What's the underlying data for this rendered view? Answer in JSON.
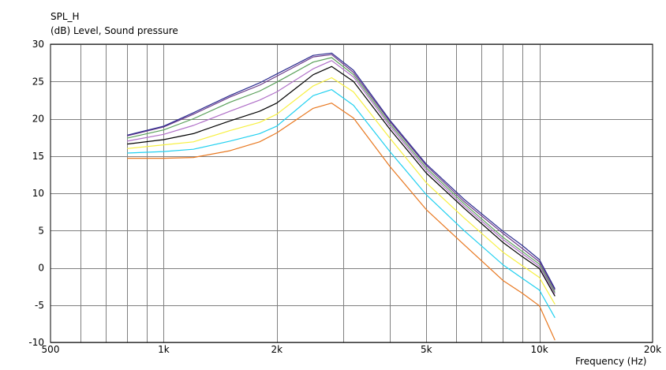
{
  "chart_data": {
    "type": "line",
    "title": "SPL_H",
    "subtitle": "(dB)  Level, Sound pressure",
    "xlabel": "Frequency  (Hz)",
    "xscale": "log",
    "xlim": [
      500,
      20000
    ],
    "ylim": [
      -10,
      30
    ],
    "grid": true,
    "y_ticks": [
      30,
      25,
      20,
      15,
      10,
      5,
      0,
      -5,
      -10
    ],
    "x_tick_labels": [
      {
        "value": 500,
        "label": "500"
      },
      {
        "value": 1000,
        "label": "1k"
      },
      {
        "value": 2000,
        "label": "2k"
      },
      {
        "value": 5000,
        "label": "5k"
      },
      {
        "value": 10000,
        "label": "10k"
      },
      {
        "value": 20000,
        "label": "20k"
      }
    ],
    "x_minor_gridlines": [
      600,
      700,
      800,
      900,
      1000,
      2000,
      3000,
      4000,
      5000,
      6000,
      7000,
      8000,
      9000,
      10000
    ],
    "x": [
      800,
      1000,
      1200,
      1500,
      1800,
      2000,
      2500,
      2800,
      3200,
      4000,
      5000,
      6300,
      8000,
      9000,
      10000,
      11000
    ],
    "series": [
      {
        "color": "#2b2b8f",
        "values": [
          17.8,
          19.0,
          20.8,
          23.1,
          24.8,
          26.0,
          28.5,
          28.8,
          26.5,
          19.8,
          13.9,
          9.2,
          4.9,
          3.0,
          1.1,
          -2.8
        ]
      },
      {
        "color": "#6a3a8a",
        "values": [
          17.7,
          18.9,
          20.6,
          22.9,
          24.5,
          25.7,
          28.3,
          28.6,
          26.2,
          19.6,
          13.7,
          8.9,
          4.6,
          2.6,
          0.8,
          -3.0
        ]
      },
      {
        "color": "#5aa05a",
        "values": [
          17.4,
          18.5,
          20.0,
          22.2,
          23.7,
          24.9,
          27.6,
          28.2,
          25.9,
          19.3,
          13.4,
          8.6,
          4.1,
          2.2,
          0.5,
          -3.3
        ]
      },
      {
        "color": "#b070c8",
        "values": [
          17.0,
          17.9,
          19.1,
          21.0,
          22.5,
          23.6,
          26.7,
          27.8,
          25.6,
          19.0,
          13.1,
          8.3,
          3.8,
          1.9,
          0.2,
          -3.5
        ]
      },
      {
        "color": "#000000",
        "values": [
          16.6,
          17.2,
          18.0,
          19.7,
          21.0,
          22.1,
          25.9,
          27.0,
          25.0,
          18.6,
          12.7,
          8.0,
          3.4,
          1.5,
          -0.1,
          -3.8
        ]
      },
      {
        "color": "#f7f040",
        "values": [
          16.0,
          16.5,
          16.9,
          18.4,
          19.5,
          20.6,
          24.4,
          25.5,
          23.6,
          17.4,
          11.4,
          6.7,
          2.1,
          0.3,
          -1.3,
          -4.9
        ]
      },
      {
        "color": "#20d0f0",
        "values": [
          15.4,
          15.6,
          15.9,
          17.0,
          18.0,
          19.0,
          23.1,
          23.9,
          21.8,
          15.6,
          9.8,
          5.0,
          0.4,
          -1.4,
          -3.0,
          -6.7
        ]
      },
      {
        "color": "#e87820",
        "values": [
          14.7,
          14.7,
          14.8,
          15.7,
          16.9,
          18.1,
          21.4,
          22.1,
          20.1,
          13.6,
          7.8,
          3.1,
          -1.7,
          -3.4,
          -5.1,
          -9.7
        ]
      }
    ]
  }
}
